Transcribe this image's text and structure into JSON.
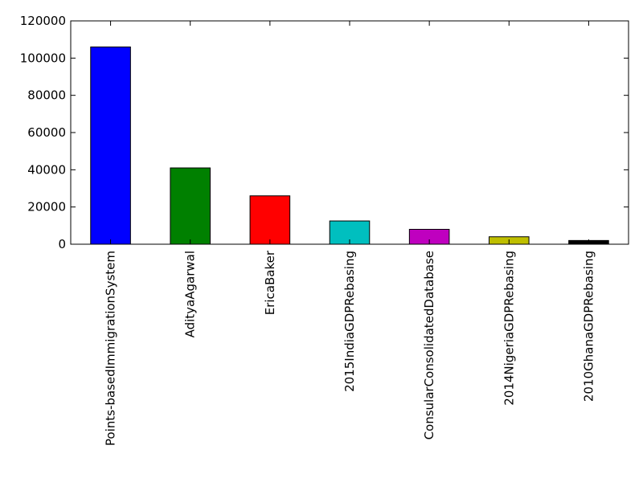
{
  "chart_data": {
    "type": "bar",
    "title": "",
    "xlabel": "",
    "ylabel": "",
    "ylim": [
      0,
      120000
    ],
    "yticks": [
      0,
      20000,
      40000,
      60000,
      80000,
      100000,
      120000
    ],
    "grid": false,
    "legend": "none",
    "categories": [
      "Points-basedImmigrationSystem",
      "AdityaAgarwal",
      "EricaBaker",
      "2015IndiaGDPRebasing",
      "ConsularConsolidatedDatabase",
      "2014NigeriaGDPRebasing",
      "2010GhanaGDPRebasing"
    ],
    "values": [
      106000,
      41000,
      26000,
      12500,
      8000,
      4000,
      2000
    ],
    "colors": [
      "#0000ff",
      "#008000",
      "#ff0000",
      "#00bfbf",
      "#bf00bf",
      "#bfbf00",
      "#000000"
    ]
  }
}
